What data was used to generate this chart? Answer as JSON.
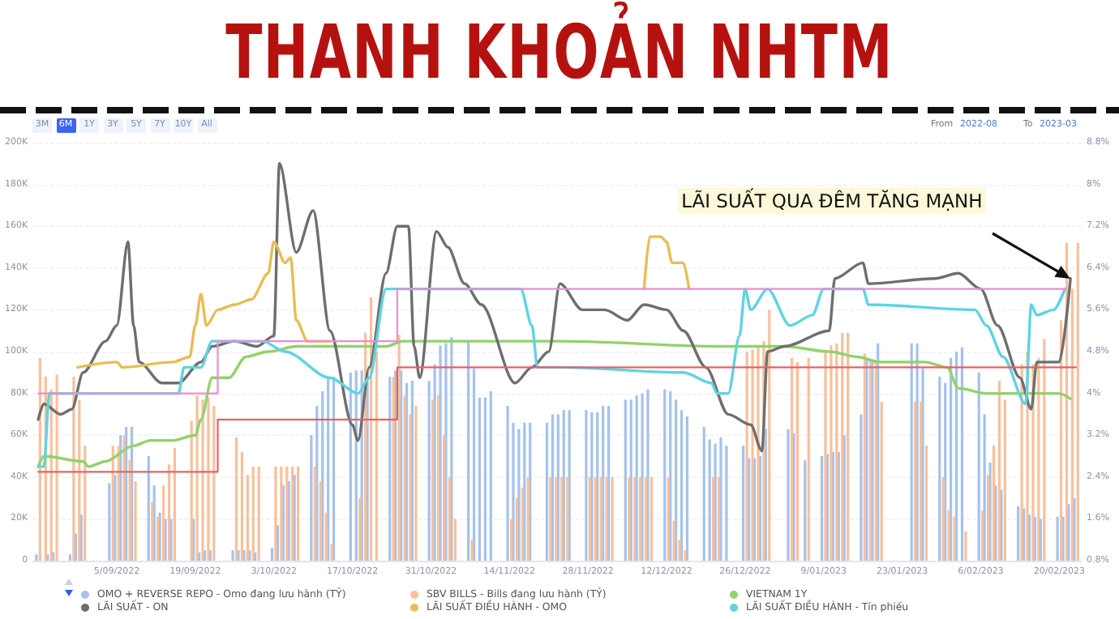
{
  "chart_data": {
    "type": "bar",
    "title": "THANH KHOẢN NHTM",
    "annotations": [
      "3M",
      "6M",
      "1Y",
      "3Y",
      "5Y",
      "7Y",
      "10Y",
      "All",
      "From",
      "2022-08",
      "To",
      "2023-03",
      {
        "text": "LÃI SUẤT QUA ĐÊM TĂNG MẠNH",
        "x": "2023-02-22",
        "y": 135000
      }
    ],
    "xlim": [
      "2022-08-21",
      "2023-02-24"
    ],
    "xticks": [
      {
        "value": "2022-09-05",
        "label": "5/09/2022"
      },
      {
        "value": "2022-09-19",
        "label": "19/09/2022"
      },
      {
        "value": "2022-10-03",
        "label": "3/10/2022"
      },
      {
        "value": "2022-10-17",
        "label": "17/10/2022"
      },
      {
        "value": "2022-10-31",
        "label": "31/10/2022"
      },
      {
        "value": "2022-11-14",
        "label": "14/11/2022"
      },
      {
        "value": "2022-11-28",
        "label": "28/11/2022"
      },
      {
        "value": "2022-12-12",
        "label": "12/12/2022"
      },
      {
        "value": "2022-12-26",
        "label": "26/12/2022"
      },
      {
        "value": "2023-01-09",
        "label": "9/01/2023"
      },
      {
        "value": "2023-01-23",
        "label": "23/01/2023"
      },
      {
        "value": "2023-02-06",
        "label": "6/02/2023"
      },
      {
        "value": "2023-02-20",
        "label": "20/02/2023"
      }
    ],
    "ylim": [
      0,
      200000
    ],
    "yticks": [
      0,
      {
        "value": 20000,
        "label": "20K"
      },
      {
        "value": 40000,
        "label": "40K"
      },
      {
        "value": 60000,
        "label": "60K"
      },
      {
        "value": 80000,
        "label": "80K"
      },
      {
        "value": 100000,
        "label": "100K"
      },
      {
        "value": 120000,
        "label": "120K"
      },
      {
        "value": 140000,
        "label": "140K"
      },
      {
        "value": 160000,
        "label": "160K"
      },
      {
        "value": 180000,
        "label": "180K"
      },
      {
        "value": 200000,
        "label": "200K"
      }
    ],
    "y2lim": [
      0.8,
      8.8
    ],
    "y2ticks": [
      {
        "value": 0.8,
        "label": "0.8%"
      },
      {
        "value": 1.6,
        "label": "1.6%"
      },
      {
        "value": 2.4,
        "label": "2.4%"
      },
      {
        "value": 3.2,
        "label": "3.2%"
      },
      {
        "value": 4,
        "label": "4%"
      },
      {
        "value": 4.8,
        "label": "4.8%"
      },
      {
        "value": 5.6,
        "label": "5.6%"
      },
      {
        "value": 6.4,
        "label": "6.4%"
      },
      {
        "value": 7.2,
        "label": "7.2%"
      },
      {
        "value": 8,
        "label": "8%"
      },
      {
        "value": 8.8,
        "label": "8.8%"
      }
    ],
    "grid": "y",
    "legend": "bottom",
    "marker": "none",
    "series": [
      {
        "name": "OMO + REVERSE REPO - Omo đang lưu hành (TỶ)",
        "color": "#a4c2ec",
        "x": [
          "2022-08-22",
          "2022-08-24",
          "2022-08-25",
          "2022-08-28",
          "2022-08-29",
          "2022-08-30",
          "2022-09-04",
          "2022-09-05",
          "2022-09-06",
          "2022-09-07",
          "2022-09-08",
          "2022-09-11",
          "2022-09-12",
          "2022-09-13",
          "2022-09-14",
          "2022-09-15",
          "2022-09-19",
          "2022-09-20",
          "2022-09-21",
          "2022-09-22",
          "2022-09-26",
          "2022-09-27",
          "2022-09-28",
          "2022-09-29",
          "2022-09-30",
          "2022-10-03",
          "2022-10-04",
          "2022-10-05",
          "2022-10-06",
          "2022-10-07",
          "2022-10-10",
          "2022-10-11",
          "2022-10-12",
          "2022-10-13",
          "2022-10-14",
          "2022-10-17",
          "2022-10-18",
          "2022-10-19",
          "2022-10-20",
          "2022-10-24",
          "2022-10-25",
          "2022-10-26",
          "2022-10-27",
          "2022-10-28",
          "2022-10-31",
          "2022-11-01",
          "2022-11-02",
          "2022-11-03",
          "2022-11-04",
          "2022-11-07",
          "2022-11-08",
          "2022-11-09",
          "2022-11-10",
          "2022-11-11",
          "2022-11-14",
          "2022-11-15",
          "2022-11-16",
          "2022-11-17",
          "2022-11-18",
          "2022-11-21",
          "2022-11-22",
          "2022-11-23",
          "2022-11-24",
          "2022-11-25",
          "2022-11-28",
          "2022-11-29",
          "2022-11-30",
          "2022-12-01",
          "2022-12-02",
          "2022-12-05",
          "2022-12-06",
          "2022-12-07",
          "2022-12-08",
          "2022-12-09",
          "2022-12-12",
          "2022-12-13",
          "2022-12-14",
          "2022-12-15",
          "2022-12-16",
          "2022-12-19",
          "2022-12-20",
          "2022-12-21",
          "2022-12-22",
          "2022-12-23",
          "2022-12-26",
          "2022-12-27",
          "2022-12-28",
          "2022-12-29",
          "2022-12-30",
          "2023-01-03",
          "2023-01-04",
          "2023-01-06",
          "2023-01-09",
          "2023-01-10",
          "2023-01-11",
          "2023-01-12",
          "2023-01-13",
          "2023-01-16",
          "2023-01-17",
          "2023-01-18",
          "2023-01-19",
          "2023-01-25",
          "2023-01-26",
          "2023-01-27",
          "2023-01-30",
          "2023-01-31",
          "2023-02-01",
          "2023-02-02",
          "2023-02-03",
          "2023-02-06",
          "2023-02-07",
          "2023-02-08",
          "2023-02-09",
          "2023-02-10",
          "2023-02-13",
          "2023-02-14",
          "2023-02-15",
          "2023-02-16",
          "2023-02-17",
          "2023-02-20",
          "2023-02-21",
          "2023-02-22",
          "2023-02-23"
        ],
        "values": [
          3000,
          3000,
          4000,
          3000,
          13000,
          22000,
          37000,
          41000,
          60000,
          64000,
          64000,
          50000,
          36000,
          23000,
          20000,
          20000,
          20000,
          4000,
          5000,
          5000,
          5000,
          5000,
          5000,
          5000,
          4000,
          6000,
          17000,
          36000,
          38000,
          41000,
          60000,
          74000,
          81000,
          88000,
          88000,
          90000,
          91000,
          91000,
          90000,
          88000,
          91000,
          91000,
          85000,
          86000,
          86000,
          94000,
          103000,
          104000,
          107000,
          105000,
          92000,
          78000,
          78000,
          81000,
          74000,
          66000,
          63000,
          66000,
          66000,
          66000,
          70000,
          70000,
          72000,
          72000,
          72000,
          71000,
          71000,
          74000,
          74000,
          77000,
          77000,
          79000,
          80000,
          82000,
          82000,
          81000,
          77000,
          72000,
          69000,
          64000,
          58000,
          56000,
          59000,
          55000,
          55000,
          49000,
          49000,
          50000,
          63000,
          63000,
          61000,
          48000,
          50000,
          51000,
          52000,
          52000,
          60000,
          70000,
          97000,
          96000,
          104000,
          104000,
          104000,
          92000,
          88000,
          85000,
          97000,
          100000,
          102000,
          90000,
          70000,
          47000,
          36000,
          34000,
          26000,
          25000,
          22000,
          21000,
          20000,
          21000,
          21000,
          27000,
          30000
        ]
      },
      {
        "name": "SBV BILLS - Bills đang lưu hành (TỶ)",
        "color": "#f8c09b",
        "x": [
          "2022-08-22",
          "2022-08-23",
          "2022-08-24",
          "2022-08-25",
          "2022-08-28",
          "2022-08-29",
          "2022-08-30",
          "2022-09-04",
          "2022-09-05",
          "2022-09-06",
          "2022-09-07",
          "2022-09-08",
          "2022-09-11",
          "2022-09-12",
          "2022-09-13",
          "2022-09-14",
          "2022-09-15",
          "2022-09-18",
          "2022-09-19",
          "2022-09-20",
          "2022-09-21",
          "2022-09-22",
          "2022-09-26",
          "2022-09-27",
          "2022-09-28",
          "2022-09-29",
          "2022-09-30",
          "2022-10-03",
          "2022-10-04",
          "2022-10-05",
          "2022-10-06",
          "2022-10-07",
          "2022-10-10",
          "2022-10-11",
          "2022-10-12",
          "2022-10-13",
          "2022-10-18",
          "2022-10-19",
          "2022-10-20",
          "2022-10-21",
          "2022-10-24",
          "2022-10-25",
          "2022-10-26",
          "2022-10-27",
          "2022-10-28",
          "2022-10-31",
          "2022-11-01",
          "2022-11-02",
          "2022-11-03",
          "2022-11-04",
          "2022-11-07",
          "2022-11-14",
          "2022-11-15",
          "2022-11-16",
          "2022-11-17",
          "2022-11-21",
          "2022-11-22",
          "2022-11-23",
          "2022-11-24",
          "2022-11-28",
          "2022-11-29",
          "2022-11-30",
          "2022-12-01",
          "2022-12-02",
          "2022-12-05",
          "2022-12-06",
          "2022-12-07",
          "2022-12-08",
          "2022-12-09",
          "2022-12-12",
          "2022-12-13",
          "2022-12-14",
          "2022-12-15",
          "2022-12-20",
          "2022-12-21",
          "2022-12-26",
          "2022-12-27",
          "2022-12-28",
          "2022-12-29",
          "2022-12-30",
          "2023-01-03",
          "2023-01-04",
          "2023-01-06",
          "2023-01-09",
          "2023-01-10",
          "2023-01-11",
          "2023-01-12",
          "2023-01-13",
          "2023-01-16",
          "2023-01-17",
          "2023-01-18",
          "2023-01-19",
          "2023-01-25",
          "2023-01-26",
          "2023-01-27",
          "2023-01-30",
          "2023-01-31",
          "2023-02-01",
          "2023-02-03",
          "2023-02-06",
          "2023-02-07",
          "2023-02-08",
          "2023-02-09",
          "2023-02-10",
          "2023-02-13",
          "2023-02-14",
          "2023-02-15",
          "2023-02-16",
          "2023-02-17",
          "2023-02-20",
          "2023-02-21",
          "2023-02-22",
          "2023-02-23"
        ],
        "values": [
          97000,
          88000,
          82000,
          89000,
          88000,
          77000,
          55000,
          55000,
          55000,
          60000,
          48000,
          38000,
          28000,
          21000,
          36000,
          46000,
          54000,
          67000,
          79000,
          77000,
          78000,
          74000,
          59000,
          52000,
          41000,
          45000,
          45000,
          45000,
          45000,
          45000,
          45000,
          45000,
          45000,
          38000,
          23000,
          8000,
          30000,
          109000,
          126000,
          100000,
          88000,
          108000,
          79000,
          70000,
          74000,
          77000,
          79000,
          60000,
          40000,
          20000,
          10000,
          20000,
          30000,
          35000,
          40000,
          40000,
          40000,
          40000,
          40000,
          40000,
          40000,
          40000,
          40000,
          40000,
          40000,
          40000,
          40000,
          40000,
          40000,
          40000,
          19000,
          10000,
          5000,
          40000,
          40000,
          100000,
          101000,
          103000,
          105000,
          120000,
          97000,
          95000,
          97000,
          101000,
          103000,
          104000,
          109000,
          109000,
          99000,
          96000,
          96000,
          76000,
          76000,
          76000,
          55000,
          40000,
          24000,
          21000,
          14000,
          24000,
          41000,
          55000,
          86000,
          77000,
          94000,
          100000,
          94000,
          97000,
          106000,
          115000,
          152000,
          130000,
          152000
        ]
      },
      {
        "name": "VIETNAM 1Y",
        "type": "line",
        "axis": "y2",
        "color": "#93d16c",
        "x": [
          "2022-08-22",
          "2022-08-23",
          "2022-08-30",
          "2022-08-31",
          "2022-09-03",
          "2022-09-08",
          "2022-09-11",
          "2022-09-15",
          "2022-09-19",
          "2022-09-20",
          "2022-09-22",
          "2022-09-25",
          "2022-09-28",
          "2022-10-02",
          "2022-10-07",
          "2022-10-17",
          "2022-10-23",
          "2022-10-26",
          "2022-11-11",
          "2022-11-23",
          "2022-12-22",
          "2022-12-29",
          "2023-01-02",
          "2023-01-10",
          "2023-01-15",
          "2023-01-19",
          "2023-01-27",
          "2023-01-31",
          "2023-02-02",
          "2023-02-07",
          "2023-02-20",
          "2023-02-22"
        ],
        "values": [
          2.6,
          2.8,
          2.7,
          2.6,
          2.7,
          3.0,
          3.1,
          3.1,
          3.2,
          3.5,
          4.3,
          4.3,
          4.7,
          4.8,
          4.9,
          4.9,
          4.9,
          5.0,
          5.0,
          5.0,
          4.9,
          4.9,
          4.9,
          4.8,
          4.7,
          4.6,
          4.6,
          4.5,
          4.1,
          4.0,
          4.0,
          3.9
        ]
      },
      {
        "name": "LÃI SUẤT - ON",
        "type": "line",
        "axis": "y2",
        "color": "#6e6e6e",
        "x": [
          "2022-08-22",
          "2022-08-23",
          "2022-08-26",
          "2022-08-28",
          "2022-08-30",
          "2022-09-03",
          "2022-09-05",
          "2022-09-07",
          "2022-09-08",
          "2022-09-09",
          "2022-09-13",
          "2022-09-16",
          "2022-09-20",
          "2022-09-22",
          "2022-09-26",
          "2022-09-30",
          "2022-10-03",
          "2022-10-04",
          "2022-10-07",
          "2022-10-10",
          "2022-10-13",
          "2022-10-17",
          "2022-10-18",
          "2022-10-20",
          "2022-10-23",
          "2022-10-25",
          "2022-10-27",
          "2022-10-28",
          "2022-10-29",
          "2022-11-01",
          "2022-11-03",
          "2022-11-06",
          "2022-11-09",
          "2022-11-15",
          "2022-11-18",
          "2022-11-21",
          "2022-11-23",
          "2022-11-27",
          "2022-12-01",
          "2022-12-05",
          "2022-12-08",
          "2022-12-12",
          "2022-12-15",
          "2022-12-19",
          "2022-12-23",
          "2022-12-27",
          "2022-12-29",
          "2022-12-30",
          "2023-01-02",
          "2023-01-10",
          "2023-01-11",
          "2023-01-16",
          "2023-01-17",
          "2023-01-29",
          "2023-02-02",
          "2023-02-06",
          "2023-02-09",
          "2023-02-13",
          "2023-02-15",
          "2023-02-16",
          "2023-02-20",
          "2023-02-22"
        ],
        "values": [
          3.5,
          3.8,
          3.6,
          3.7,
          4.4,
          5.0,
          5.3,
          6.9,
          5.3,
          4.6,
          4.2,
          4.2,
          4.6,
          4.9,
          5.0,
          4.9,
          5.1,
          8.4,
          6.7,
          7.5,
          5.2,
          3.4,
          3.1,
          4.5,
          6.3,
          7.2,
          7.2,
          4.9,
          4.3,
          7.1,
          6.8,
          6.1,
          5.7,
          4.2,
          4.5,
          4.8,
          6.1,
          5.6,
          5.6,
          5.4,
          5.7,
          5.6,
          5.2,
          4.5,
          3.6,
          3.4,
          2.9,
          4.8,
          4.9,
          5.2,
          6.2,
          6.5,
          6.1,
          6.2,
          6.3,
          6.0,
          5.3,
          4.3,
          3.7,
          4.6,
          4.6,
          6.2
        ]
      },
      {
        "name": "LÃI SUẤT ĐIỀU HÀNH - OMO",
        "type": "line",
        "axis": "y2",
        "color": "#e8bd55",
        "x": [
          "2022-08-29",
          "2022-09-05",
          "2022-09-06",
          "2022-09-15",
          "2022-09-18",
          "2022-09-19",
          "2022-09-20",
          "2022-09-21",
          "2022-09-23",
          "2022-09-26",
          "2022-09-29",
          "2022-10-02",
          "2022-10-03",
          "2022-10-05",
          "2022-10-06",
          "2022-10-07",
          "2022-10-09",
          "2022-10-13",
          "2022-11-10",
          "2022-12-08",
          "2022-12-09",
          "2022-12-11",
          "2022-12-12",
          "2022-12-13",
          "2022-12-15",
          "2022-12-16"
        ],
        "values": [
          4.5,
          4.6,
          4.5,
          4.6,
          4.7,
          5.3,
          5.9,
          5.3,
          5.6,
          5.7,
          5.8,
          6.3,
          6.9,
          6.5,
          6.6,
          5.4,
          5.0,
          5.0,
          null,
          6.0,
          7.0,
          7.0,
          6.9,
          6.5,
          6.5,
          6.0
        ]
      },
      {
        "name": "LÃI SUẤT ĐIỀU HÀNH - Tín phiếu",
        "type": "line",
        "axis": "y2",
        "color": "#5fd3e2",
        "x": [
          "2022-08-22",
          "2022-08-23",
          "2022-08-24",
          "2022-09-16",
          "2022-09-17",
          "2022-09-20",
          "2022-09-22",
          "2022-10-01",
          "2022-10-05",
          "2022-10-13",
          "2022-10-18",
          "2022-10-20",
          "2022-10-23",
          "2022-11-16",
          "2022-11-18",
          "2022-11-19",
          "2022-11-23",
          "2022-12-15",
          "2022-12-20",
          "2022-12-21",
          "2022-12-23",
          "2022-12-25",
          "2022-12-26",
          "2022-12-27",
          "2022-12-30",
          "2023-01-03",
          "2023-01-07",
          "2023-01-09",
          "2023-01-16",
          "2023-01-17",
          "2023-02-05",
          "2023-02-07",
          "2023-02-10",
          "2023-02-14",
          "2023-02-15",
          "2023-02-16",
          "2023-02-19",
          "2023-02-21"
        ],
        "values": [
          2.6,
          2.6,
          4.0,
          4.0,
          4.5,
          4.5,
          5.0,
          5.0,
          4.8,
          4.3,
          4.0,
          4.3,
          6.0,
          6.0,
          5.3,
          4.5,
          4.5,
          4.4,
          4.2,
          4.0,
          4.0,
          5.1,
          6.0,
          5.6,
          6.0,
          5.3,
          5.5,
          6.0,
          6.0,
          5.7,
          5.6,
          5.3,
          4.7,
          3.8,
          5.7,
          5.5,
          5.6,
          6.0
        ]
      },
      {
        "type": "step",
        "axis": "y2",
        "color": "#ee8ccf",
        "x": [
          "2022-08-22",
          "2022-09-23",
          "2022-10-25",
          "2023-02-21"
        ],
        "values": [
          4,
          5,
          6,
          6
        ]
      },
      {
        "type": "step",
        "axis": "y2",
        "color": "#e36464",
        "x": [
          "2022-08-22",
          "2022-09-23",
          "2022-10-25",
          "2023-02-23"
        ],
        "values": [
          2.5,
          3.5,
          4.5,
          4.5
        ]
      }
    ]
  }
}
